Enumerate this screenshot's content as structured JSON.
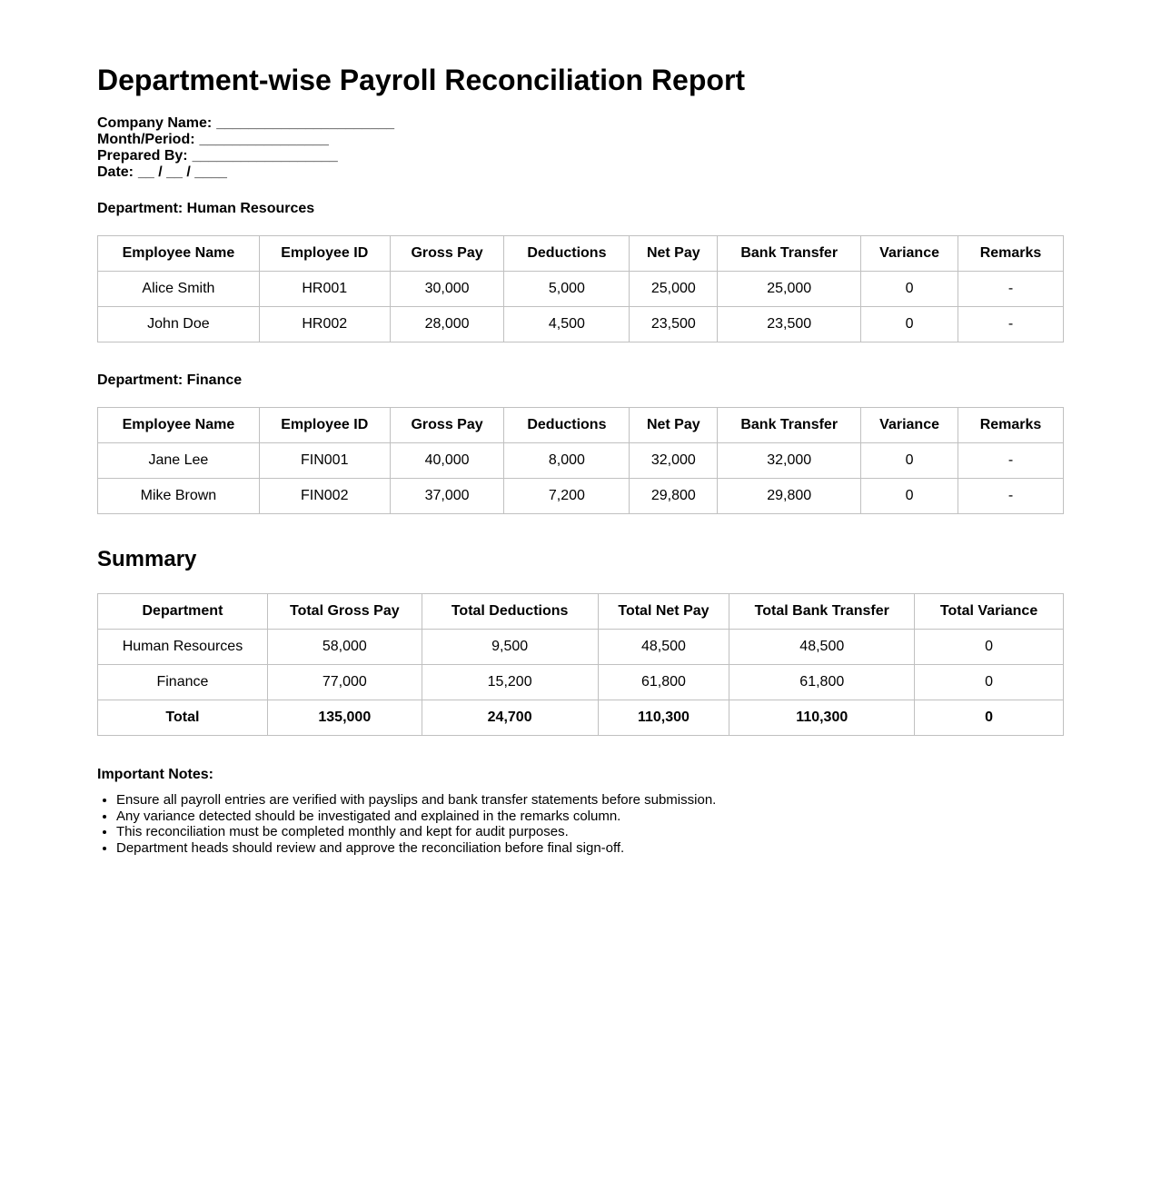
{
  "title": "Department-wise Payroll Reconciliation Report",
  "meta_fields": [
    {
      "label": "Company Name:",
      "value": "______________________"
    },
    {
      "label": "Month/Period:",
      "value": "________________"
    },
    {
      "label": "Prepared By:",
      "value": "__________________"
    },
    {
      "label": "Date:",
      "value": "__ / __ / ____"
    }
  ],
  "department_sections": [
    {
      "heading": "Department: Human Resources",
      "table": {
        "headers": [
          "Employee Name",
          "Employee ID",
          "Gross Pay",
          "Deductions",
          "Net Pay",
          "Bank Transfer",
          "Variance",
          "Remarks"
        ],
        "rows": [
          [
            "Alice Smith",
            "HR001",
            "30,000",
            "5,000",
            "25,000",
            "25,000",
            "0",
            "-"
          ],
          [
            "John Doe",
            "HR002",
            "28,000",
            "4,500",
            "23,500",
            "23,500",
            "0",
            "-"
          ]
        ]
      }
    },
    {
      "heading": "Department: Finance",
      "table": {
        "headers": [
          "Employee Name",
          "Employee ID",
          "Gross Pay",
          "Deductions",
          "Net Pay",
          "Bank Transfer",
          "Variance",
          "Remarks"
        ],
        "rows": [
          [
            "Jane Lee",
            "FIN001",
            "40,000",
            "8,000",
            "32,000",
            "32,000",
            "0",
            "-"
          ],
          [
            "Mike Brown",
            "FIN002",
            "37,000",
            "7,200",
            "29,800",
            "29,800",
            "0",
            "-"
          ]
        ]
      }
    }
  ],
  "summary": {
    "heading": "Summary",
    "table": {
      "headers": [
        "Department",
        "Total Gross Pay",
        "Total Deductions",
        "Total Net Pay",
        "Total Bank Transfer",
        "Total Variance"
      ],
      "rows": [
        [
          "Human Resources",
          "58,000",
          "9,500",
          "48,500",
          "48,500",
          "0"
        ],
        [
          "Finance",
          "77,000",
          "15,200",
          "61,800",
          "61,800",
          "0"
        ],
        [
          "Total",
          "135,000",
          "24,700",
          "110,300",
          "110,300",
          "0"
        ]
      ],
      "bold_last_row": true
    }
  },
  "notes": {
    "heading": "Important Notes:",
    "items": [
      "Ensure all payroll entries are verified with payslips and bank transfer statements before submission.",
      "Any variance detected should be investigated and explained in the remarks column.",
      "This reconciliation must be completed monthly and kept for audit purposes.",
      "Department heads should review and approve the reconciliation before final sign-off."
    ]
  },
  "colors": {
    "background": "#ffffff",
    "text": "#000000",
    "table_border": "#c0c0c0"
  }
}
